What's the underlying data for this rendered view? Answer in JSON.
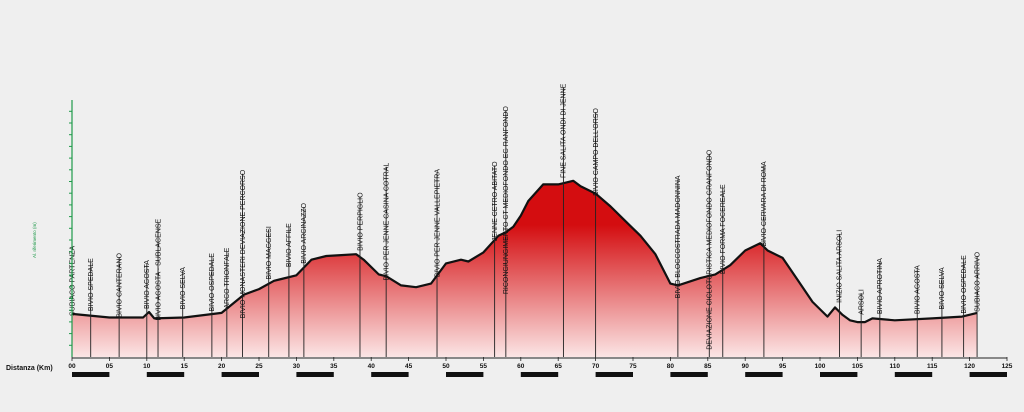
{
  "chart_data": {
    "type": "area",
    "xlabel": "Distanza (Km)",
    "ylabel": "Al. riferimento (m)",
    "xlim": [
      0,
      125
    ],
    "ylim": [
      0,
      14
    ],
    "colors": {
      "fill_top": "#d40d10",
      "fill_bottom": "#fbe5e5",
      "outline": "#111111",
      "axis": "#1f9a4a"
    },
    "x_ticks": [
      "00",
      "05",
      "10",
      "15",
      "20",
      "25",
      "30",
      "35",
      "40",
      "45",
      "50",
      "55",
      "60",
      "65",
      "70",
      "75",
      "80",
      "85",
      "90",
      "95",
      "100",
      "105",
      "110",
      "115",
      "120",
      "125"
    ],
    "x_tick_values": [
      0,
      5,
      10,
      15,
      20,
      25,
      30,
      35,
      40,
      45,
      50,
      55,
      60,
      65,
      70,
      75,
      80,
      85,
      90,
      95,
      100,
      105,
      110,
      115,
      120,
      125
    ],
    "profile": {
      "x": [
        0,
        5,
        9.5,
        10.3,
        11,
        15,
        20,
        23,
        25,
        27,
        28,
        30,
        32,
        34,
        36,
        38,
        39,
        41,
        42,
        44,
        46,
        48,
        50,
        52,
        53,
        55,
        57,
        58,
        59,
        60,
        61,
        63,
        65,
        67,
        68,
        70,
        72,
        74,
        76,
        78,
        80,
        81,
        84,
        86,
        88,
        90,
        92,
        93,
        95,
        97,
        99,
        101,
        102,
        103,
        104,
        105,
        106,
        107,
        110,
        115,
        119,
        121
      ],
      "y": [
        2.35,
        2.15,
        2.15,
        2.45,
        2.1,
        2.15,
        2.4,
        3.4,
        3.7,
        4.15,
        4.25,
        4.45,
        5.3,
        5.5,
        5.55,
        5.6,
        5.3,
        4.5,
        4.4,
        3.9,
        3.8,
        4.0,
        5.1,
        5.3,
        5.2,
        5.7,
        6.6,
        6.8,
        7.1,
        7.7,
        8.5,
        9.4,
        9.4,
        9.6,
        9.3,
        8.9,
        8.2,
        7.4,
        6.6,
        5.6,
        4.0,
        3.9,
        4.3,
        4.5,
        5.0,
        5.8,
        6.2,
        5.8,
        5.4,
        4.2,
        3.0,
        2.2,
        2.7,
        2.3,
        2.0,
        1.9,
        1.9,
        2.1,
        2.0,
        2.1,
        2.2,
        2.4
      ]
    },
    "waypoints": [
      {
        "x": 0,
        "label": "SUBIACO PARTENZA"
      },
      {
        "x": 2.5,
        "label": "BIVIO SPEDALE"
      },
      {
        "x": 6.3,
        "label": "BIVIO CANTERANO"
      },
      {
        "x": 10,
        "label": "BIVIO AGOSTA"
      },
      {
        "x": 11.5,
        "label": "BIVIO AGOSTA - SUBLACENSE"
      },
      {
        "x": 14.8,
        "label": "BIVIO SELVA"
      },
      {
        "x": 18.7,
        "label": "BIVIO OSPEDALE"
      },
      {
        "x": 20.7,
        "label": "ARCO TRIONFALE"
      },
      {
        "x": 22.8,
        "label": "BIVIO MONASTERI DEVIAZIONE PERCORSO"
      },
      {
        "x": 26.3,
        "label": "BIVIO MAGGESI"
      },
      {
        "x": 29,
        "label": "BIVIO AFFILE"
      },
      {
        "x": 31,
        "label": "BIVIO ARCINAZZO"
      },
      {
        "x": 38.5,
        "label": "BIVIO PERPIGLIO"
      },
      {
        "x": 42,
        "label": "BIVIO PER JENNE CASINA COTRAL"
      },
      {
        "x": 48.8,
        "label": "BIVIO PER JENNE VALLEPIETRA"
      },
      {
        "x": 56.5,
        "label": "JENNE CETRO ABITATO"
      },
      {
        "x": 58,
        "label": "RICONGIUNGIMENTO CT MEDIOFONDO EG RANFONDO"
      },
      {
        "x": 65.7,
        "label": "FINE SALITA ONDI DI JENNE"
      },
      {
        "x": 70,
        "label": "BIVIO CAMPO DELL'ORSO"
      },
      {
        "x": 81,
        "label": "BIVIO BLOCCOSTRADA MADONNINA"
      },
      {
        "x": 85.2,
        "label": "DEVIAZIONE CICLOTURISTICA MEDIOFONDO GRANFONDO"
      },
      {
        "x": 87,
        "label": "BIVIO FORMA FOCEREALE"
      },
      {
        "x": 92.5,
        "label": "BIVIO CERVARA DI ROMA"
      },
      {
        "x": 102.6,
        "label": "INIZIO SALITA ARSOLI"
      },
      {
        "x": 105.5,
        "label": "ARSOLI"
      },
      {
        "x": 108,
        "label": "BIVIO APROTINA"
      },
      {
        "x": 113,
        "label": "BIVIO AGOSTA"
      },
      {
        "x": 116.3,
        "label": "BIVIO SELVA"
      },
      {
        "x": 119.2,
        "label": "BIVIO OSPEDALE"
      },
      {
        "x": 121,
        "label": "SUBIACO ARRIVO"
      }
    ]
  }
}
